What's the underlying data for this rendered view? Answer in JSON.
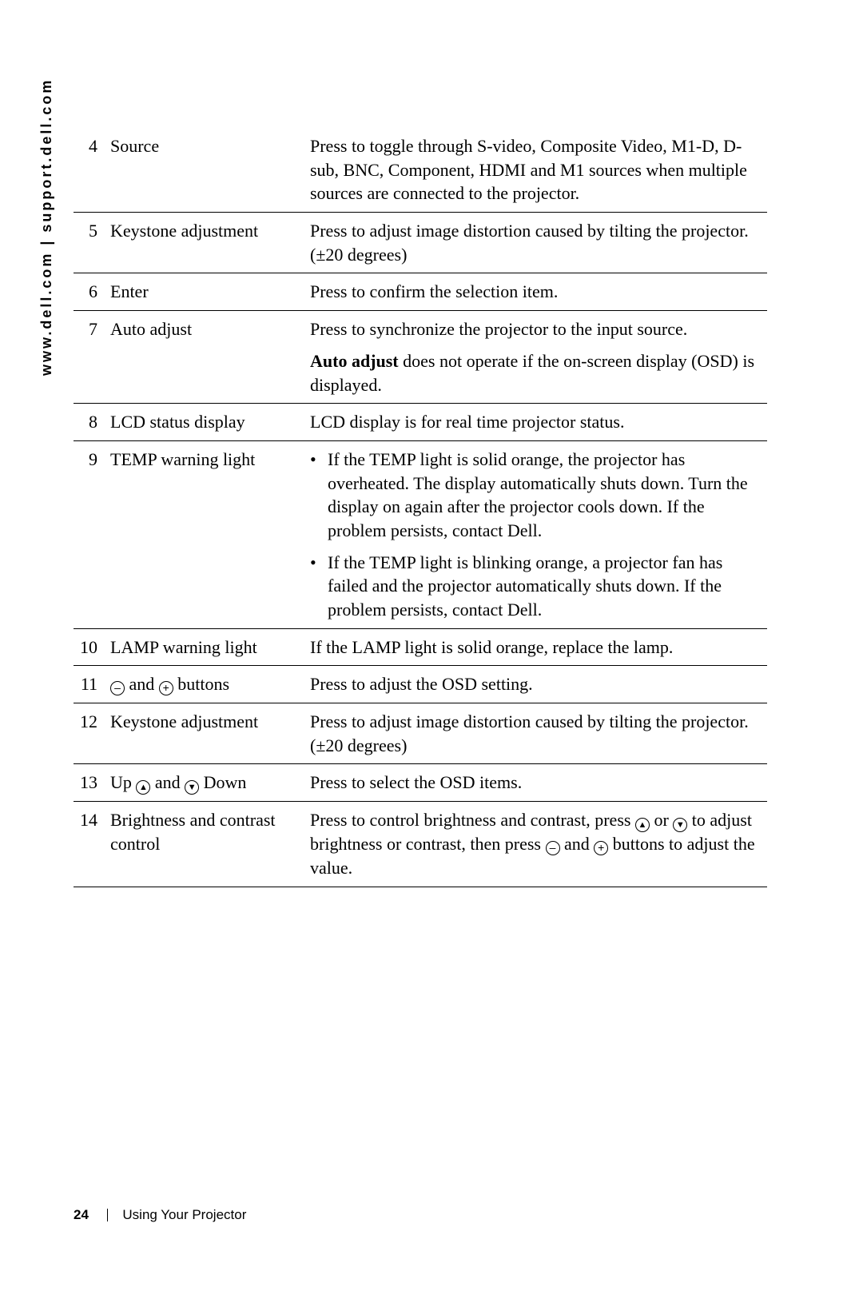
{
  "sidebar": {
    "text": "www.dell.com | support.dell.com"
  },
  "icons": {
    "minus": "–",
    "plus": "+",
    "up": "▲",
    "down": "▼"
  },
  "rows": [
    {
      "num": "4",
      "name": "Source",
      "desc_html": "Press to toggle through S-video, Composite Video, M1-D, D-sub, BNC, Component, HDMI and M1 sources when multiple sources are connected to the projector."
    },
    {
      "num": "5",
      "name": "Keystone adjustment",
      "desc_html": "Press to adjust image distortion caused by tilting the projector. (±20 degrees)"
    },
    {
      "num": "6",
      "name": "Enter",
      "desc_html": "Press to confirm the selection item."
    },
    {
      "num": "7",
      "name": "Auto adjust",
      "desc_html": "<div class=\"desc-block\">Press to synchronize the projector to the input source.</div><div class=\"desc-block\"><span class=\"bold\">Auto adjust</span> does not operate if the on-screen display (OSD) is displayed.</div>"
    },
    {
      "num": "8",
      "name": "LCD status display",
      "desc_html": "LCD display is for real time projector status."
    },
    {
      "num": "9",
      "name": "TEMP warning light",
      "desc_html": "<div class=\"bullet-row\"><div class=\"bullet-dot\">•</div><div class=\"bullet-text\">If the TEMP light is solid orange, the projector has overheated. The display automatically shuts down. Turn the display on again after the projector cools down. If the problem persists, contact Dell.</div></div><div class=\"bullet-row\"><div class=\"bullet-dot\">•</div><div class=\"bullet-text\">If the TEMP light is blinking orange, a projector fan has failed and the projector automatically shuts down. If the problem persists, contact Dell.</div></div>"
    },
    {
      "num": "10",
      "name": "LAMP warning light",
      "desc_html": "If the LAMP light is solid orange, replace the lamp."
    },
    {
      "num": "11",
      "name_html": "<span class=\"icon\" data-name=\"minus-icon\" data-interactable=\"false\">–</span> and <span class=\"icon\" data-name=\"plus-icon\" data-interactable=\"false\">+</span> buttons",
      "desc_html": "Press to adjust the OSD setting."
    },
    {
      "num": "12",
      "name": "Keystone adjustment",
      "desc_html": "Press to adjust image distortion caused by tilting the projector. (±20 degrees)"
    },
    {
      "num": "13",
      "name_html": "Up <span class=\"icon icon-arrow\" data-name=\"up-icon\" data-interactable=\"false\">▲</span> and <span class=\"icon icon-arrow\" data-name=\"down-icon\" data-interactable=\"false\">▼</span> Down",
      "desc_html": "Press to select the OSD items."
    },
    {
      "num": "14",
      "name": "Brightness and contrast control",
      "desc_html": "Press to control brightness and contrast, press <span class=\"icon icon-arrow\" data-name=\"up-icon\" data-interactable=\"false\">▲</span> or <span class=\"icon icon-arrow\" data-name=\"down-icon\" data-interactable=\"false\">▼</span>  to adjust brightness or contrast, then press <span class=\"icon\" data-name=\"minus-icon\" data-interactable=\"false\">–</span> and <span class=\"icon\" data-name=\"plus-icon\" data-interactable=\"false\">+</span> buttons to adjust the value."
    }
  ],
  "footer": {
    "page": "24",
    "section": "Using Your Projector"
  }
}
